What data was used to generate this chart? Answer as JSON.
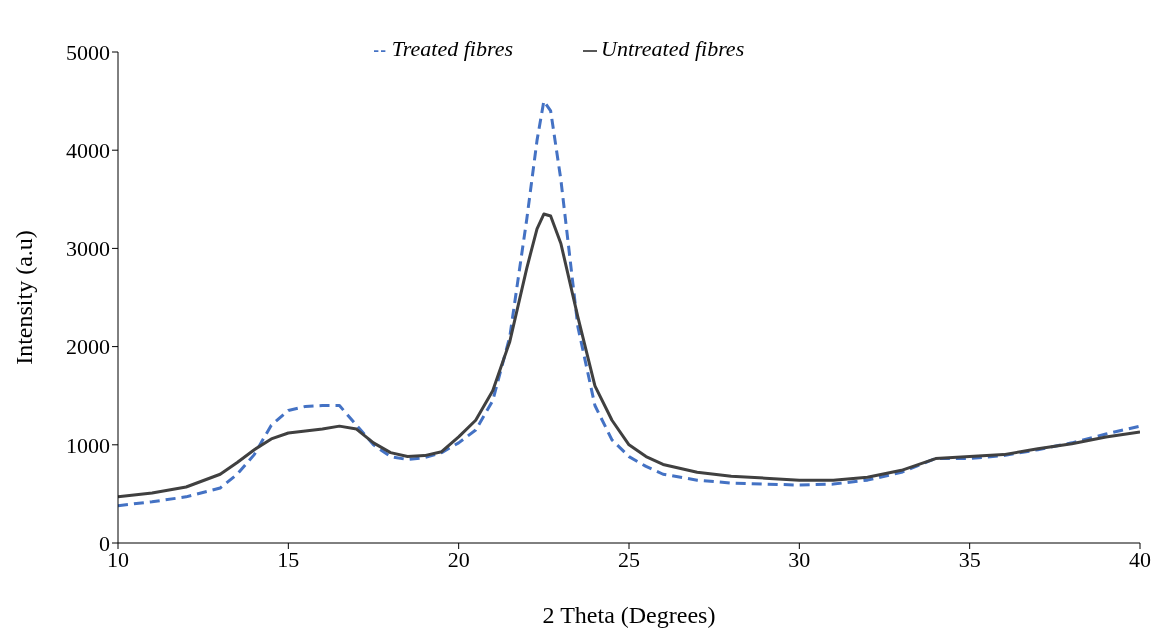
{
  "chart_data": {
    "type": "line",
    "xlabel": "2 Theta (Degrees)",
    "ylabel": "Intensity (a.u)",
    "x": [
      10,
      11,
      12,
      13,
      13.5,
      14,
      14.5,
      15,
      15.5,
      16,
      16.5,
      17,
      17.5,
      18,
      18.5,
      19,
      19.5,
      20,
      20.5,
      21,
      21.5,
      22,
      22.3,
      22.5,
      22.7,
      23,
      23.5,
      24,
      24.5,
      25,
      25.5,
      26,
      27,
      28,
      29,
      30,
      31,
      32,
      33,
      34,
      35,
      36,
      37,
      38,
      39,
      40
    ],
    "series": [
      {
        "name": "Treated fibres",
        "color": "#4472c4",
        "line_style": "dashed",
        "values": [
          380,
          420,
          470,
          560,
          700,
          900,
          1200,
          1350,
          1390,
          1400,
          1400,
          1200,
          1000,
          880,
          850,
          870,
          920,
          1020,
          1150,
          1450,
          2100,
          3300,
          4100,
          4500,
          4400,
          3700,
          2200,
          1400,
          1050,
          880,
          780,
          700,
          640,
          610,
          600,
          590,
          600,
          640,
          720,
          860,
          860,
          890,
          950,
          1020,
          1110,
          1190
        ]
      },
      {
        "name": "Untreated fibres",
        "color": "#404040",
        "line_style": "solid",
        "values": [
          470,
          510,
          570,
          700,
          820,
          950,
          1060,
          1120,
          1140,
          1160,
          1190,
          1160,
          1020,
          920,
          880,
          890,
          930,
          1080,
          1250,
          1550,
          2050,
          2800,
          3200,
          3350,
          3330,
          3050,
          2300,
          1600,
          1250,
          1000,
          880,
          800,
          720,
          680,
          660,
          640,
          640,
          670,
          740,
          860,
          880,
          900,
          960,
          1010,
          1080,
          1130
        ]
      }
    ],
    "xlim": [
      10,
      40
    ],
    "xticks": [
      10,
      15,
      20,
      25,
      30,
      35,
      40
    ],
    "ylim": [
      0,
      5000
    ],
    "yticks": [
      0,
      1000,
      2000,
      3000,
      4000,
      5000
    ],
    "grid": false,
    "legend": "top",
    "marker": "none"
  }
}
